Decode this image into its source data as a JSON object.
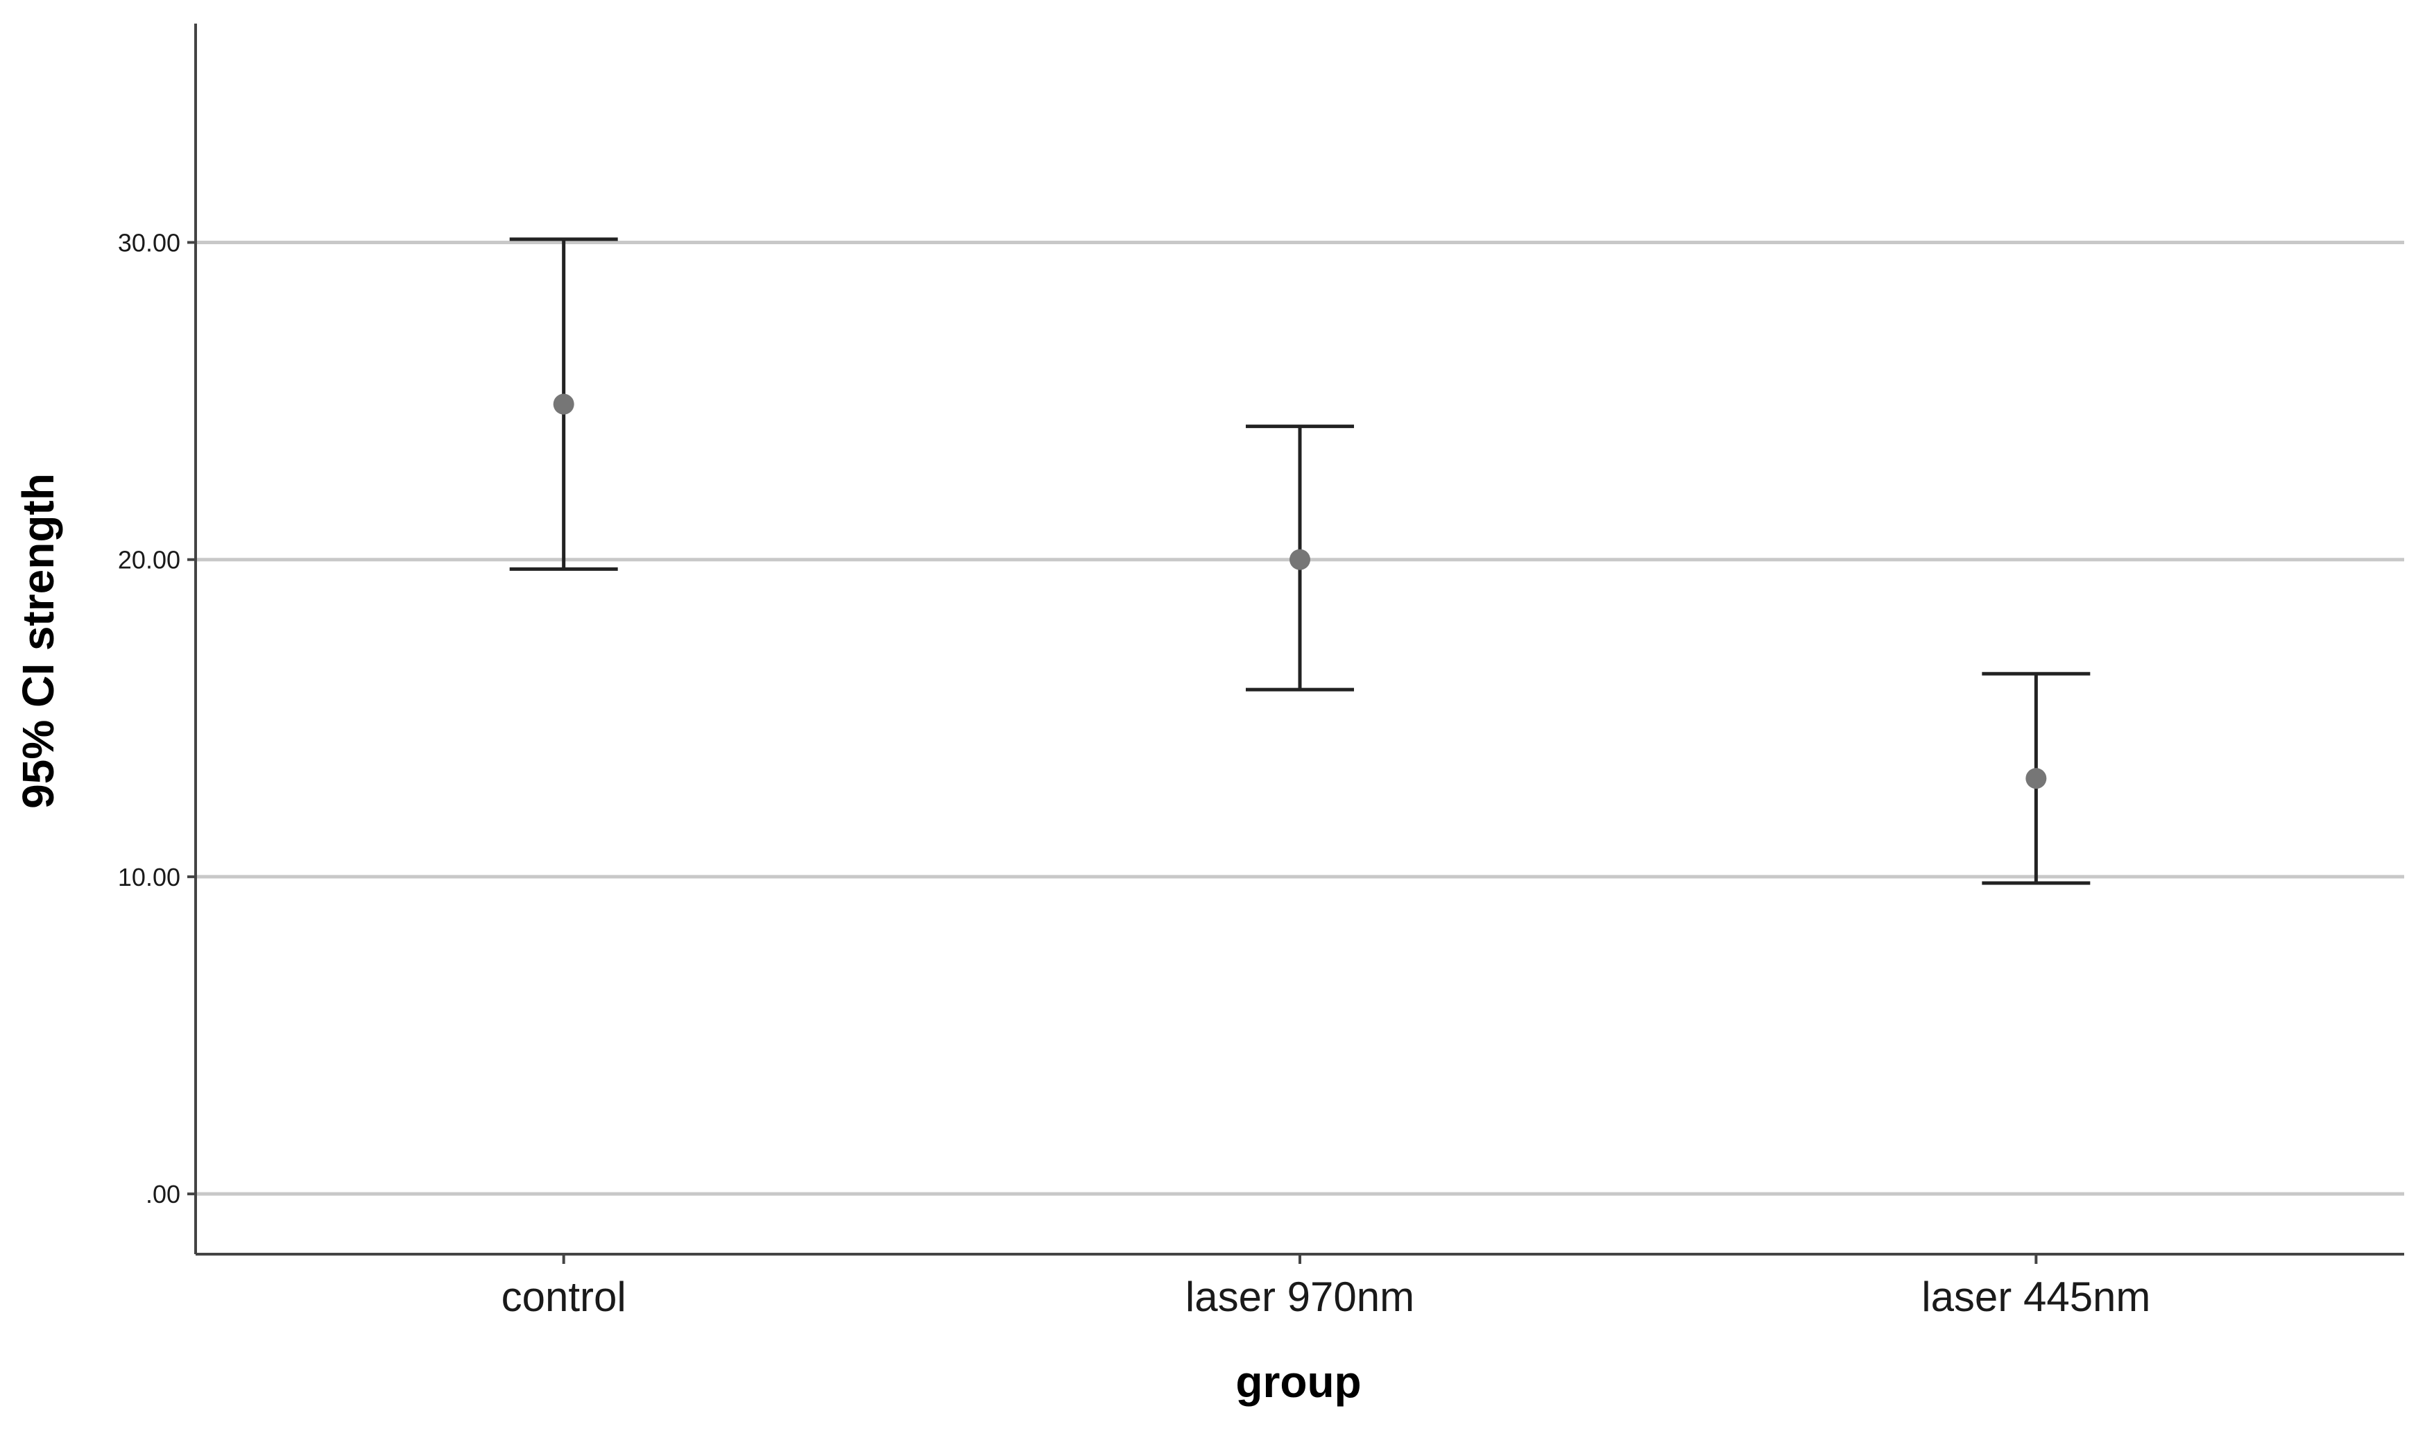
{
  "chart_data": {
    "type": "errorbar",
    "xlabel": "group",
    "ylabel": "95% CI strength",
    "categories": [
      "control",
      "laser 970nm",
      "laser 445nm"
    ],
    "means": [
      24.9,
      20.0,
      13.1
    ],
    "ci_lower": [
      19.7,
      15.9,
      9.8
    ],
    "ci_upper": [
      30.1,
      24.2,
      16.4
    ],
    "ylim": [
      -1.9,
      36.9
    ],
    "yticks": [
      0,
      10,
      20,
      30
    ],
    "ytick_labels": [
      ".00",
      "10.00",
      "20.00",
      "30.00"
    ],
    "grid": "horizontal",
    "colors": {
      "point": "#767676",
      "errorbar": "#222222",
      "gridline": "#c8c8c8",
      "axis": "#444444"
    }
  }
}
